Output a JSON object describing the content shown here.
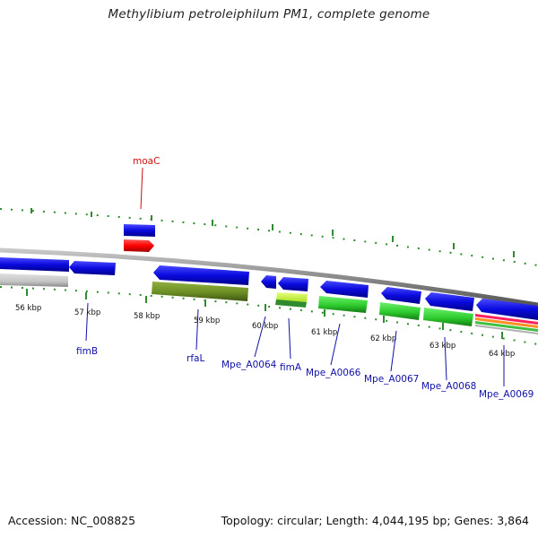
{
  "title": "Methylibium petroleiphilum PM1, complete genome",
  "footer": {
    "accession": "Accession: NC_008825",
    "summary": "Topology: circular; Length: 4,044,195 bp; Genes: 3,864"
  },
  "kbp_labels": [
    "56 kbp",
    "57 kbp",
    "58 kbp",
    "59 kbp",
    "60 kbp",
    "61 kbp",
    "62 kbp",
    "63 kbp",
    "64 kbp"
  ],
  "gene_labels": [
    {
      "id": "moaC",
      "text": "moaC",
      "color": "red"
    },
    {
      "id": "fimB",
      "text": "fimB",
      "color": "blue"
    },
    {
      "id": "rfaL",
      "text": "rfaL",
      "color": "blue"
    },
    {
      "id": "Mpe_A0064",
      "text": "Mpe_A0064",
      "color": "blue"
    },
    {
      "id": "fimA",
      "text": "fimA",
      "color": "blue"
    },
    {
      "id": "Mpe_A0066",
      "text": "Mpe_A0066",
      "color": "blue"
    },
    {
      "id": "Mpe_A0067",
      "text": "Mpe_A0067",
      "color": "blue"
    },
    {
      "id": "Mpe_A0068",
      "text": "Mpe_A0068",
      "color": "blue"
    },
    {
      "id": "Mpe_A0069",
      "text": "Mpe_A0069",
      "color": "blue"
    }
  ],
  "colors": {
    "cds": "#0a0adf",
    "rrna": "#ff0000",
    "green_feature": "#2ecc2e",
    "olive_feature": "#6b8e23",
    "backbone": "#8a8a8a",
    "ticks": "#2e8b2e"
  }
}
